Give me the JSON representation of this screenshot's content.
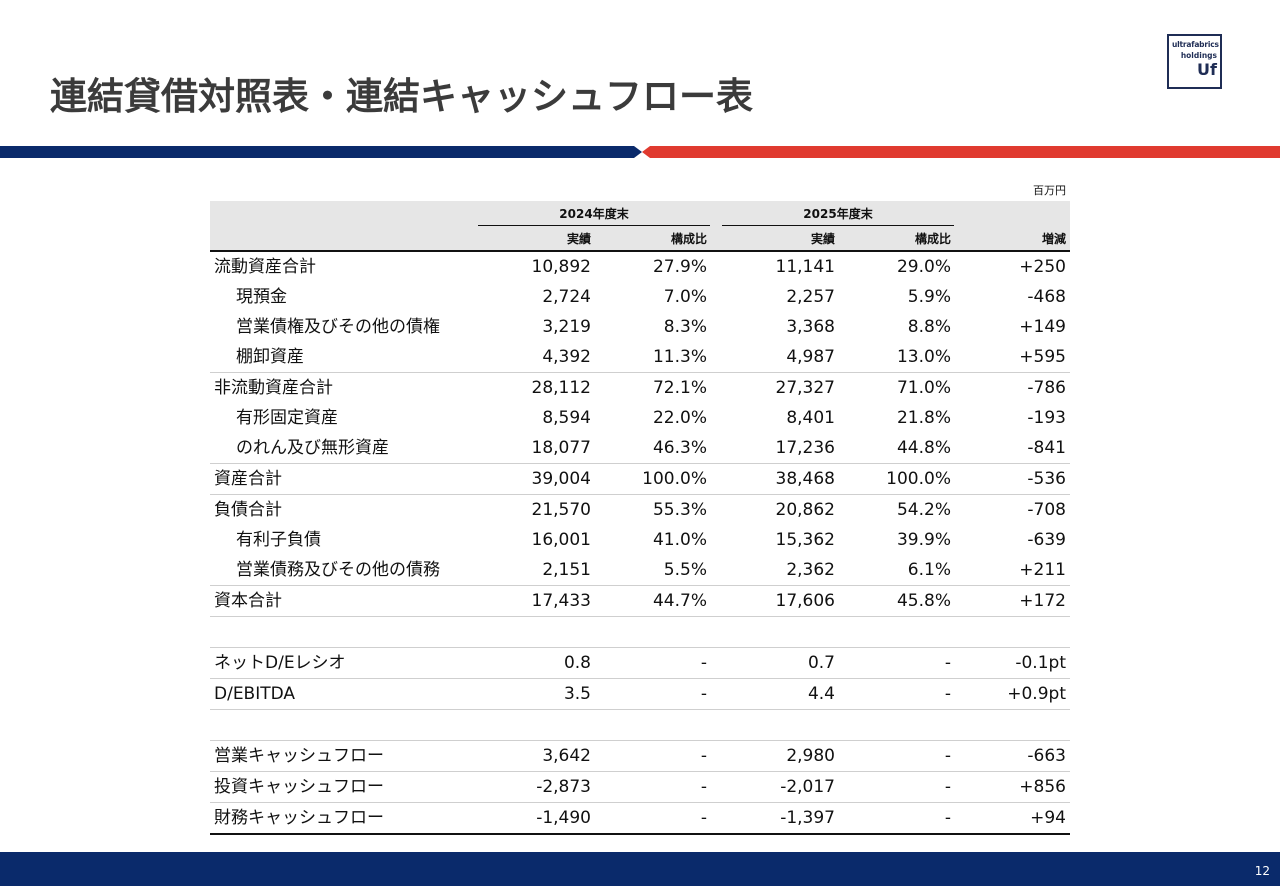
{
  "title": "連結貸借対照表・連結キャッシュフロー表",
  "logo": {
    "line1": "ultrafabrics",
    "line2": "holdings",
    "mark": "Uf"
  },
  "colors": {
    "navy": "#0a2a6b",
    "red": "#e03a2f",
    "header_bg": "#e6e6e6"
  },
  "unit": "百万円",
  "table": {
    "groups": [
      "2024年度末",
      "2025年度末"
    ],
    "subheaders": [
      "実績",
      "構成比",
      "実績",
      "構成比",
      "増減"
    ],
    "rows": [
      {
        "label": "流動資産合計",
        "indent": false,
        "line": false,
        "values": [
          "10,892",
          "27.9%",
          "11,141",
          "29.0%",
          "+250"
        ]
      },
      {
        "label": "現預金",
        "indent": true,
        "line": false,
        "values": [
          "2,724",
          "7.0%",
          "2,257",
          "5.9%",
          "-468"
        ]
      },
      {
        "label": "営業債権及びその他の債権",
        "indent": true,
        "line": false,
        "values": [
          "3,219",
          "8.3%",
          "3,368",
          "8.8%",
          "+149"
        ]
      },
      {
        "label": "棚卸資産",
        "indent": true,
        "line": true,
        "values": [
          "4,392",
          "11.3%",
          "4,987",
          "13.0%",
          "+595"
        ]
      },
      {
        "label": "非流動資産合計",
        "indent": false,
        "line": false,
        "values": [
          "28,112",
          "72.1%",
          "27,327",
          "71.0%",
          "-786"
        ]
      },
      {
        "label": "有形固定資産",
        "indent": true,
        "line": false,
        "values": [
          "8,594",
          "22.0%",
          "8,401",
          "21.8%",
          "-193"
        ]
      },
      {
        "label": "のれん及び無形資産",
        "indent": true,
        "line": true,
        "values": [
          "18,077",
          "46.3%",
          "17,236",
          "44.8%",
          "-841"
        ]
      },
      {
        "label": "資産合計",
        "indent": false,
        "line": true,
        "values": [
          "39,004",
          "100.0%",
          "38,468",
          "100.0%",
          "-536"
        ]
      },
      {
        "label": "負債合計",
        "indent": false,
        "line": false,
        "values": [
          "21,570",
          "55.3%",
          "20,862",
          "54.2%",
          "-708"
        ]
      },
      {
        "label": "有利子負債",
        "indent": true,
        "line": false,
        "values": [
          "16,001",
          "41.0%",
          "15,362",
          "39.9%",
          "-639"
        ]
      },
      {
        "label": "営業債務及びその他の債務",
        "indent": true,
        "line": true,
        "values": [
          "2,151",
          "5.5%",
          "2,362",
          "6.1%",
          "+211"
        ]
      },
      {
        "label": "資本合計",
        "indent": false,
        "line": true,
        "values": [
          "17,433",
          "44.7%",
          "17,606",
          "45.8%",
          "+172"
        ]
      },
      {
        "blank": true
      },
      {
        "label": "ネットD/Eレシオ",
        "indent": false,
        "line": true,
        "values": [
          "0.8",
          "-",
          "0.7",
          "-",
          "-0.1pt"
        ]
      },
      {
        "label": "D/EBITDA",
        "indent": false,
        "line": true,
        "values": [
          "3.5",
          "-",
          "4.4",
          "-",
          "+0.9pt"
        ]
      },
      {
        "blank": true
      },
      {
        "label": "営業キャッシュフロー",
        "indent": false,
        "line": true,
        "values": [
          "3,642",
          "-",
          "2,980",
          "-",
          "-663"
        ]
      },
      {
        "label": "投資キャッシュフロー",
        "indent": false,
        "line": true,
        "values": [
          "-2,873",
          "-",
          "-2,017",
          "-",
          "+856"
        ]
      },
      {
        "label": "財務キャッシュフロー",
        "indent": false,
        "line": true,
        "last": true,
        "values": [
          "-1,490",
          "-",
          "-1,397",
          "-",
          "+94"
        ]
      }
    ]
  },
  "page_number": "12"
}
